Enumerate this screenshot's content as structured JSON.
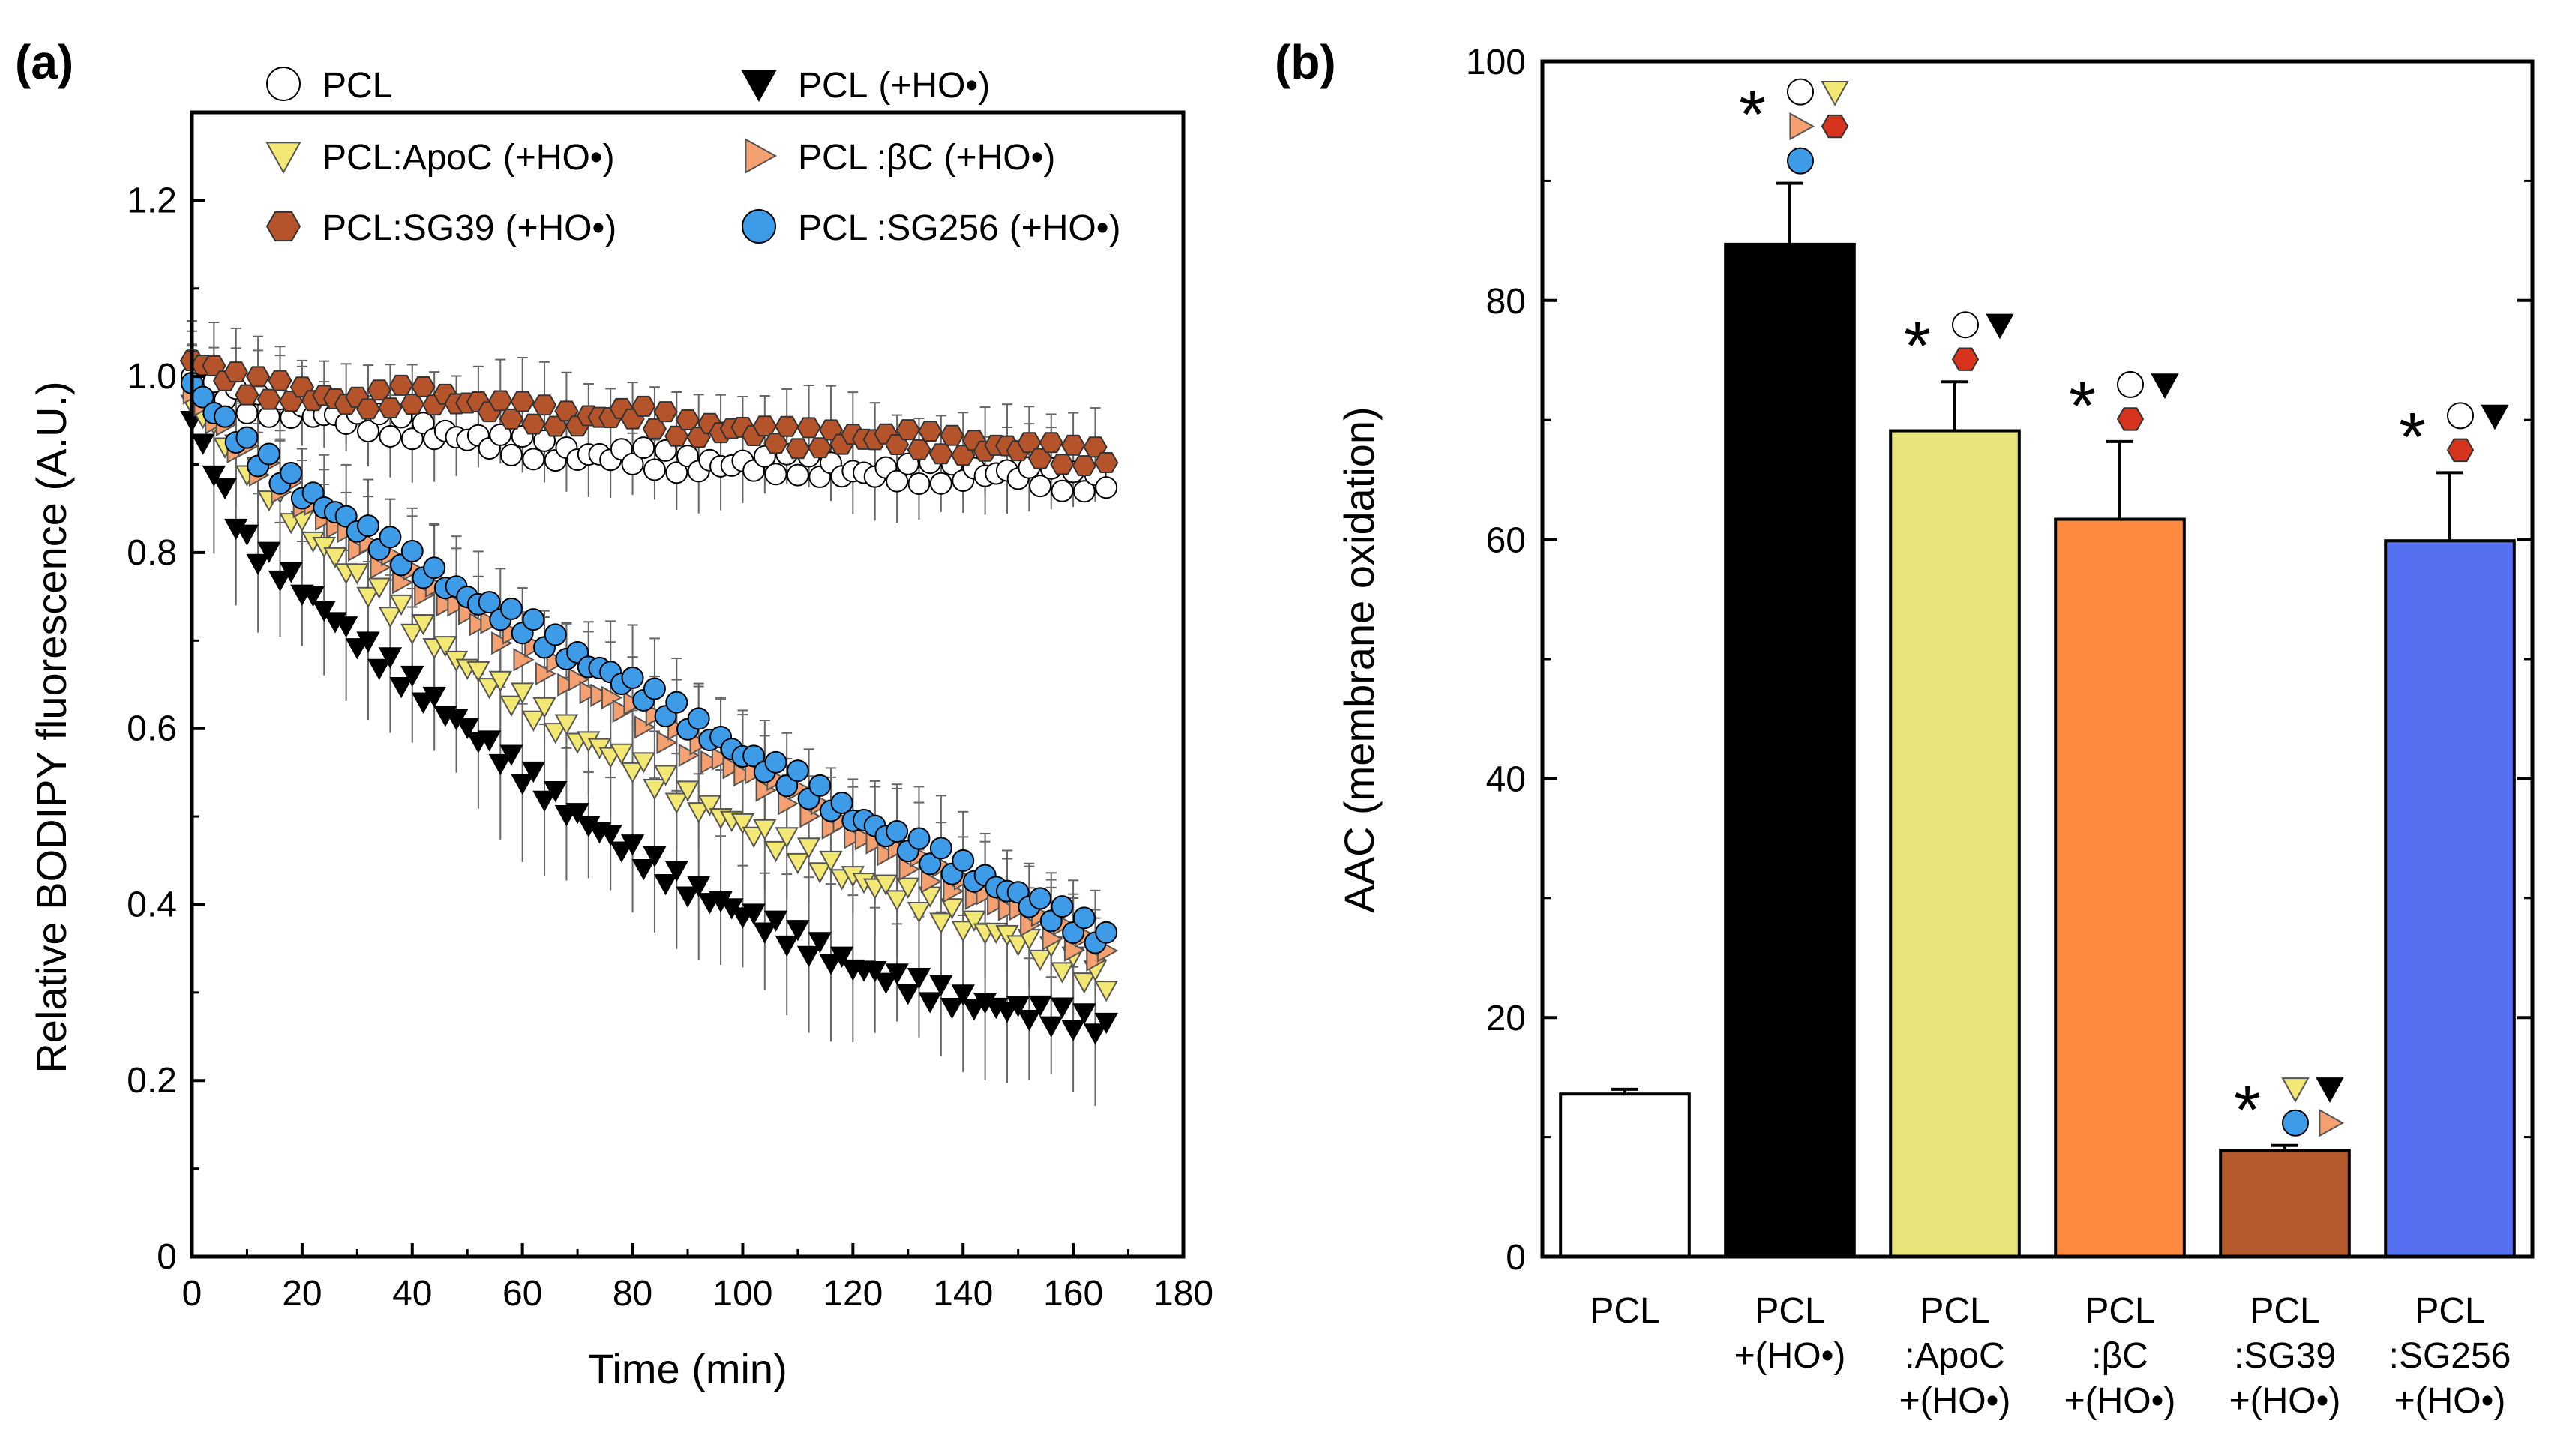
{
  "chart_data": [
    {
      "panel": "(a)",
      "type": "scatter",
      "xlabel": "Time (min)",
      "ylabel": "Relative BODIPY fluorescence (A.U.)",
      "xlim": [
        0,
        180
      ],
      "ylim": [
        0,
        1.3
      ],
      "xticks": [
        "0",
        "20",
        "40",
        "60",
        "80",
        "100",
        "120",
        "140",
        "160",
        "180"
      ],
      "yticks": [
        "0",
        "0.2",
        "0.4",
        "0.6",
        "0.8",
        "1.0",
        "1.2"
      ],
      "grid": false,
      "legend_position": "top",
      "series": [
        {
          "name": "PCL",
          "label_main": "PCL",
          "label_suffix": "",
          "marker": "circle-open",
          "color": "#ffffff",
          "x": [
            0,
            10,
            20,
            30,
            40,
            50,
            60,
            70,
            80,
            90,
            100,
            110,
            120,
            130,
            140,
            150,
            160,
            166
          ],
          "y": [
            1.0,
            0.97,
            0.96,
            0.95,
            0.94,
            0.93,
            0.92,
            0.91,
            0.91,
            0.9,
            0.9,
            0.9,
            0.89,
            0.89,
            0.89,
            0.89,
            0.88,
            0.88
          ],
          "err": 0.05
        },
        {
          "name": "PCL (+HO•)",
          "label_main": "PCL",
          "label_suffix": "(+HO•)",
          "marker": "triangle-down",
          "color": "#000000",
          "x": [
            0,
            10,
            20,
            30,
            40,
            50,
            60,
            70,
            80,
            90,
            100,
            110,
            120,
            130,
            140,
            150,
            160,
            166
          ],
          "y": [
            0.95,
            0.81,
            0.76,
            0.7,
            0.65,
            0.6,
            0.55,
            0.5,
            0.46,
            0.42,
            0.39,
            0.36,
            0.33,
            0.31,
            0.29,
            0.28,
            0.27,
            0.26
          ],
          "err": 0.09
        },
        {
          "name": "PCL:ApoC (+HO•)",
          "label_main": "PCL:ApoC",
          "label_suffix": "(+HO•)",
          "marker": "triangle-down",
          "color": "#f2e873",
          "x": [
            0,
            10,
            20,
            30,
            40,
            50,
            60,
            70,
            80,
            90,
            100,
            110,
            120,
            130,
            140,
            150,
            160,
            166
          ],
          "y": [
            0.97,
            0.9,
            0.83,
            0.77,
            0.72,
            0.67,
            0.63,
            0.59,
            0.56,
            0.52,
            0.49,
            0.46,
            0.43,
            0.41,
            0.38,
            0.36,
            0.33,
            0.31
          ],
          "err": 0.07
        },
        {
          "name": "PCL:βC (+HO•)",
          "label_main": "PCL :βC",
          "label_suffix": "(+HO•)",
          "marker": "triangle-right",
          "color": "#f4a070",
          "x": [
            0,
            10,
            20,
            30,
            40,
            50,
            60,
            70,
            80,
            90,
            100,
            110,
            120,
            130,
            140,
            150,
            160,
            166
          ],
          "y": [
            0.98,
            0.91,
            0.86,
            0.81,
            0.77,
            0.73,
            0.69,
            0.65,
            0.62,
            0.58,
            0.55,
            0.52,
            0.48,
            0.45,
            0.42,
            0.39,
            0.36,
            0.34
          ],
          "err": 0.07
        },
        {
          "name": "PCL:SG39 (+HO•)",
          "label_main": "PCL:SG39",
          "label_suffix": "(+HO•)",
          "marker": "hexagon",
          "color": "#b5532a",
          "x": [
            0,
            10,
            20,
            30,
            40,
            50,
            60,
            70,
            80,
            90,
            100,
            110,
            120,
            130,
            140,
            150,
            160,
            166
          ],
          "y": [
            1.02,
            0.99,
            0.98,
            0.97,
            0.98,
            0.97,
            0.96,
            0.95,
            0.96,
            0.94,
            0.94,
            0.93,
            0.93,
            0.93,
            0.92,
            0.92,
            0.91,
            0.91
          ],
          "err": 0.05
        },
        {
          "name": "PCL:SG256 (+HO•)",
          "label_main": "PCL :SG256",
          "label_suffix": "(+HO•)",
          "marker": "circle",
          "color": "#3d9be8",
          "x": [
            0,
            10,
            20,
            30,
            40,
            50,
            60,
            70,
            80,
            90,
            100,
            110,
            120,
            130,
            140,
            150,
            160,
            166
          ],
          "y": [
            0.99,
            0.92,
            0.87,
            0.83,
            0.79,
            0.75,
            0.72,
            0.68,
            0.65,
            0.61,
            0.57,
            0.54,
            0.5,
            0.47,
            0.44,
            0.41,
            0.38,
            0.36
          ],
          "err": 0.06
        }
      ]
    },
    {
      "panel": "(b)",
      "type": "bar",
      "xlabel": "",
      "ylabel": "AAC (membrane oxidation)",
      "ylim": [
        0,
        100
      ],
      "yticks": [
        "0",
        "20",
        "40",
        "60",
        "80",
        "100"
      ],
      "categories": [
        "PCL",
        "PCL +(HO•)",
        "PCL :ApoC +(HO•)",
        "PCL :βC +(HO•)",
        "PCL :SG39 +(HO•)",
        "PCL :SG256 +(HO•)"
      ],
      "category_lines": [
        [
          "PCL"
        ],
        [
          "PCL",
          "+(HO•)"
        ],
        [
          "PCL",
          ":ApoC",
          "+(HO•)"
        ],
        [
          "PCL",
          ":βC",
          "+(HO•)"
        ],
        [
          "PCL",
          ":SG39",
          "+(HO•)"
        ],
        [
          "PCL",
          ":SG256",
          "+(HO•)"
        ]
      ],
      "values": [
        13.6,
        84.7,
        69.1,
        61.7,
        8.9,
        59.9
      ],
      "errors": [
        0.4,
        5.1,
        4.1,
        6.5,
        0.4,
        5.7
      ],
      "colors": [
        "#ffffff",
        "#000000",
        "#eae57a",
        "#fd8a3e",
        "#b55a2b",
        "#5670f2"
      ],
      "significance": [
        {
          "star": "",
          "rows": []
        },
        {
          "star": "*",
          "rows": [
            [
              "circle-open",
              "triangle-down-yellow"
            ],
            [
              "triangle-right-orange",
              "hexagon-red"
            ],
            [
              "circle-blue"
            ]
          ]
        },
        {
          "star": "*",
          "rows": [
            [
              "circle-open",
              "triangle-down-black"
            ],
            [
              "hexagon-red"
            ]
          ]
        },
        {
          "star": "*",
          "rows": [
            [
              "circle-open",
              "triangle-down-black"
            ],
            [
              "hexagon-red"
            ]
          ]
        },
        {
          "star": "*",
          "rows": [
            [
              "triangle-down-yellow",
              "triangle-down-black"
            ],
            [
              "circle-blue",
              "triangle-right-orange"
            ]
          ]
        },
        {
          "star": "*",
          "rows": [
            [
              "circle-open",
              "triangle-down-black"
            ],
            [
              "hexagon-red"
            ]
          ]
        }
      ]
    }
  ]
}
